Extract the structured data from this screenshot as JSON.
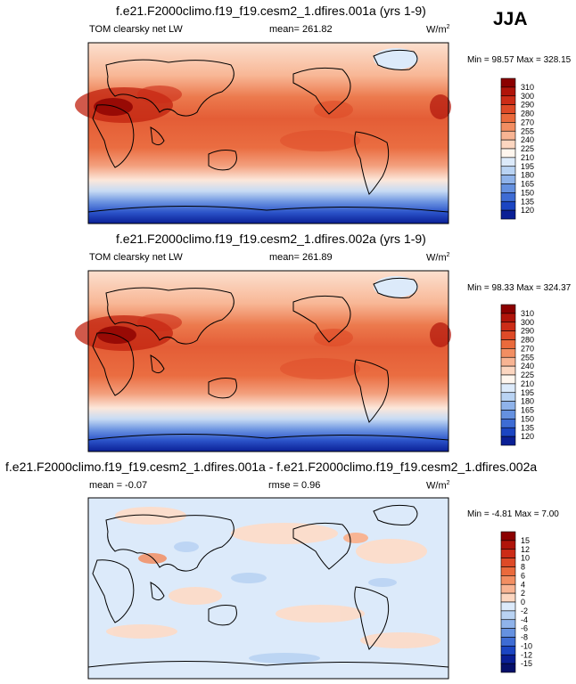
{
  "season": "JJA",
  "panels": [
    {
      "title": "f.e21.F2000climo.f19_f19.cesm2_1.dfires.001a (yrs 1-9)",
      "left_label": "TOM clearsky net LW",
      "mean_text": "mean= 261.82",
      "units_base": "W/m",
      "units_exp": "2",
      "minmax": "Min =  98.57 Max = 328.15"
    },
    {
      "title": "f.e21.F2000climo.f19_f19.cesm2_1.dfires.002a (yrs 1-9)",
      "left_label": "TOM clearsky net LW",
      "mean_text": "mean= 261.89",
      "units_base": "W/m",
      "units_exp": "2",
      "minmax": "Min =  98.33 Max = 324.37"
    },
    {
      "title": "f.e21.F2000climo.f19_f19.cesm2_1.dfires.001a - f.e21.F2000climo.f19_f19.cesm2_1.dfires.002a",
      "mean_text": "mean =  -0.07",
      "rmse_text": "rmse =   0.96",
      "units_base": "W/m",
      "units_exp": "2",
      "minmax": "Min =  -4.81 Max =   7.00"
    }
  ],
  "chart_data": [
    {
      "type": "heatmap",
      "title": "f.e21.F2000climo.f19_f19.cesm2_1.dfires.001a (yrs 1-9)",
      "variable": "TOM clearsky net LW",
      "units": "W/m2",
      "mean": 261.82,
      "min": 98.57,
      "max": 328.15,
      "colorbar_levels": [
        310,
        300,
        290,
        280,
        270,
        255,
        240,
        225,
        210,
        195,
        180,
        165,
        150,
        135,
        120
      ],
      "colorbar_colors": [
        "#8b0000",
        "#b0140a",
        "#cc2c17",
        "#de4a27",
        "#ea6a3c",
        "#f28e62",
        "#f8b493",
        "#fcd6c0",
        "#fff6ee",
        "#dceafa",
        "#b9d3f3",
        "#8fb3ea",
        "#6591e0",
        "#3e6cd4",
        "#1b45c2",
        "#0a1f95"
      ]
    },
    {
      "type": "heatmap",
      "title": "f.e21.F2000climo.f19_f19.cesm2_1.dfires.002a (yrs 1-9)",
      "variable": "TOM clearsky net LW",
      "units": "W/m2",
      "mean": 261.89,
      "min": 98.33,
      "max": 324.37,
      "colorbar_levels": [
        310,
        300,
        290,
        280,
        270,
        255,
        240,
        225,
        210,
        195,
        180,
        165,
        150,
        135,
        120
      ],
      "colorbar_colors": [
        "#8b0000",
        "#b0140a",
        "#cc2c17",
        "#de4a27",
        "#ea6a3c",
        "#f28e62",
        "#f8b493",
        "#fcd6c0",
        "#fff6ee",
        "#dceafa",
        "#b9d3f3",
        "#8fb3ea",
        "#6591e0",
        "#3e6cd4",
        "#1b45c2",
        "#0a1f95"
      ]
    },
    {
      "type": "heatmap",
      "title": "f.e21.F2000climo.f19_f19.cesm2_1.dfires.001a - f.e21.F2000climo.f19_f19.cesm2_1.dfires.002a",
      "units": "W/m2",
      "mean": -0.07,
      "rmse": 0.96,
      "min": -4.81,
      "max": 7.0,
      "colorbar_levels": [
        15,
        12,
        10,
        8,
        6,
        4,
        2,
        0,
        -2,
        -4,
        -6,
        -8,
        -10,
        -12,
        -15
      ],
      "colorbar_colors": [
        "#8b0000",
        "#b0140a",
        "#cc2c17",
        "#de4a27",
        "#ea6a3c",
        "#f28e62",
        "#f8b493",
        "#fcd6c0",
        "#dceafa",
        "#b9d3f3",
        "#8fb3ea",
        "#6591e0",
        "#3e6cd4",
        "#1b45c2",
        "#0a1f95",
        "#06106a"
      ]
    }
  ]
}
